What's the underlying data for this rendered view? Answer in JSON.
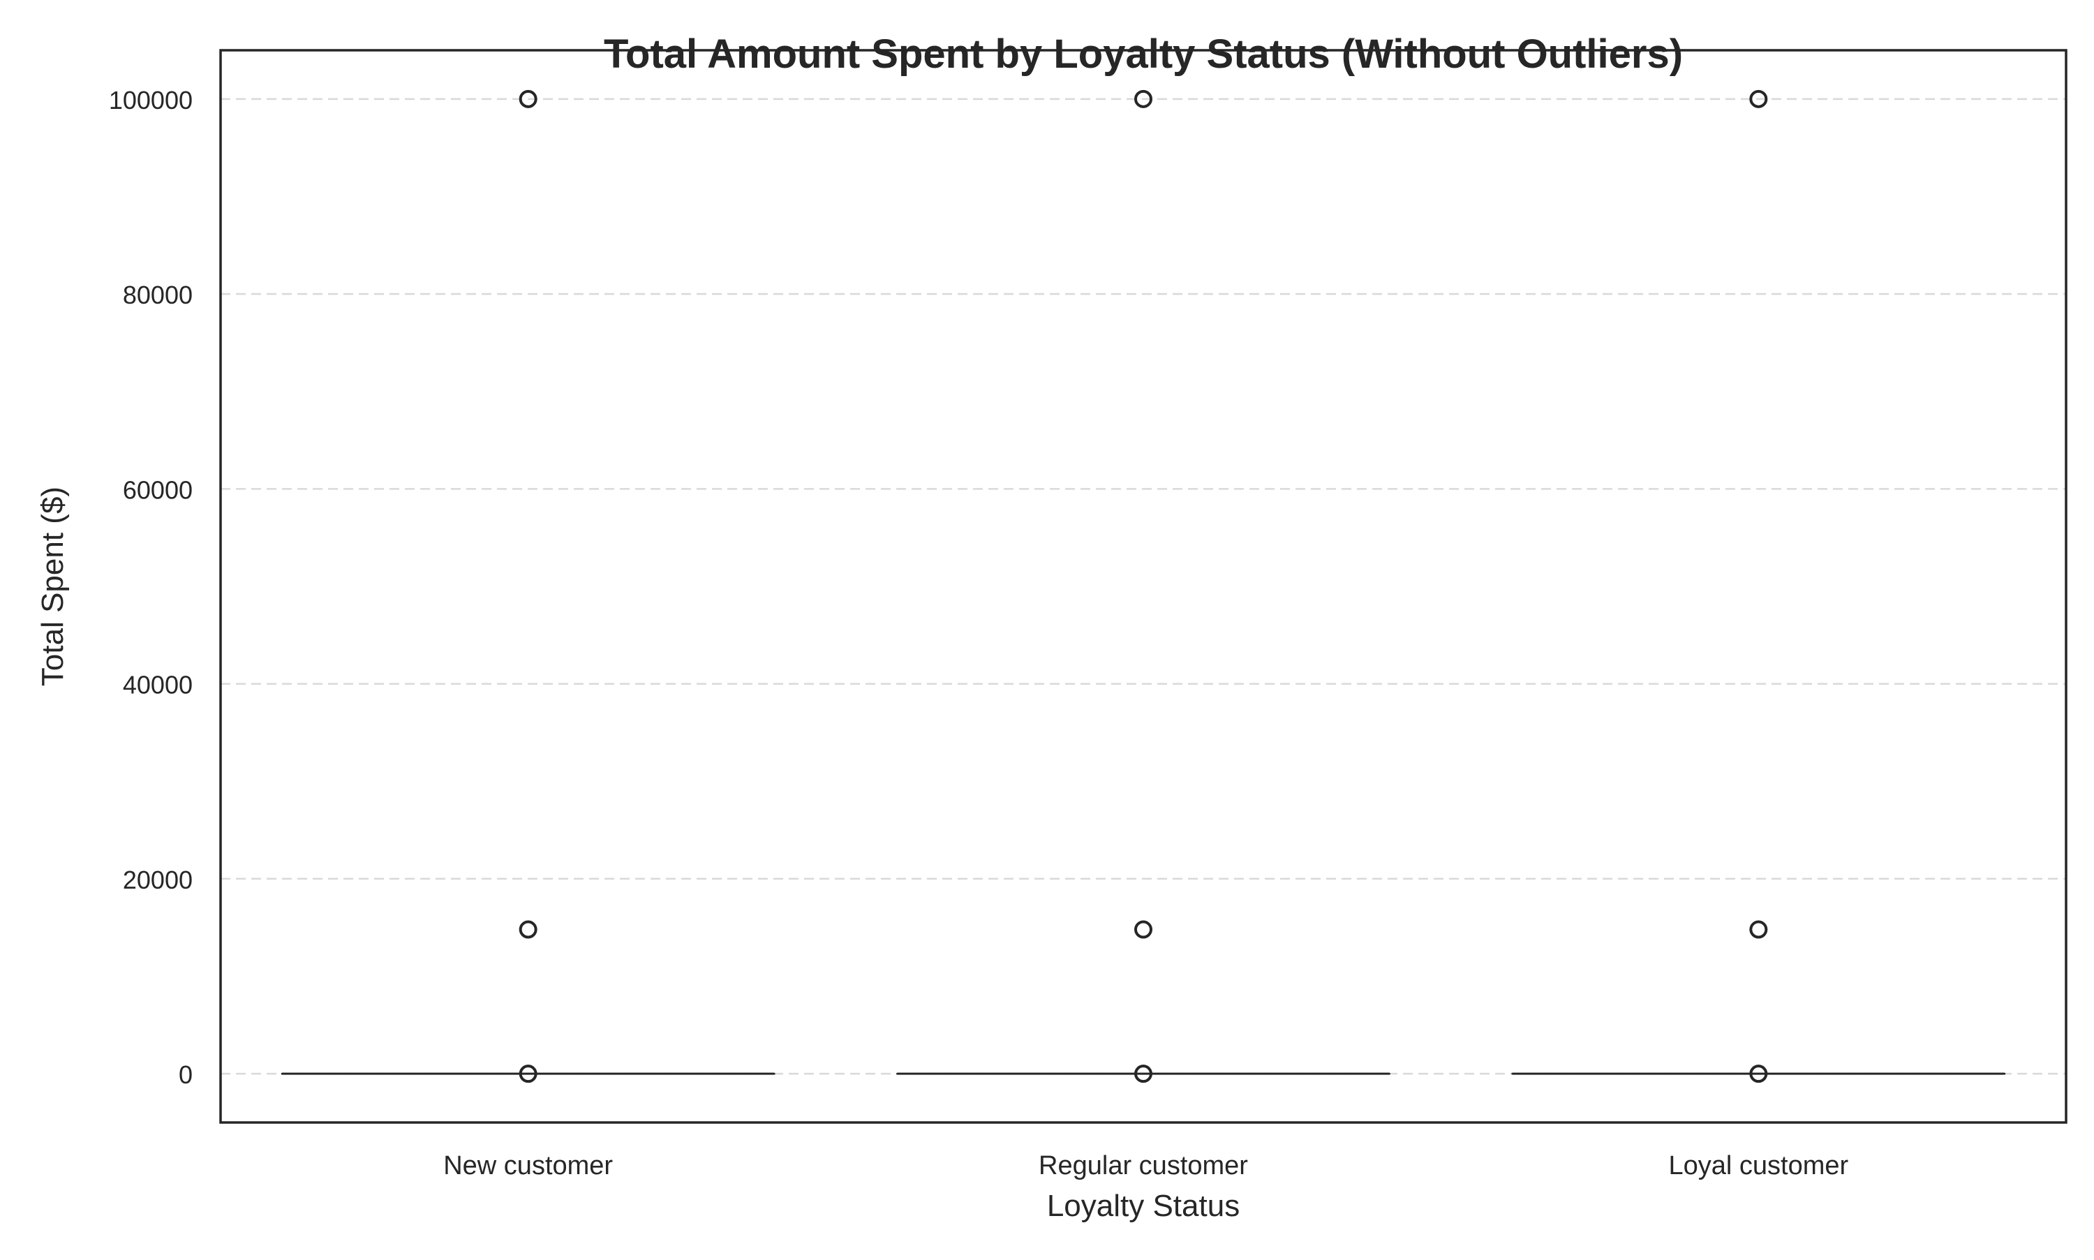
{
  "chart_data": {
    "type": "box",
    "title": "Total Amount Spent by Loyalty Status (Without Outliers)",
    "xlabel": "Loyalty Status",
    "ylabel": "Total Spent ($)",
    "categories": [
      "New customer",
      "Regular customer",
      "Loyal customer"
    ],
    "ylim": [
      -5000,
      105000
    ],
    "yticks": [
      0,
      20000,
      40000,
      60000,
      80000,
      100000
    ],
    "ytick_labels": [
      "0",
      "20000",
      "40000",
      "60000",
      "80000",
      "100000"
    ],
    "grid": "horizontal dashed",
    "boxes": [
      {
        "category": "New customer",
        "q1": 0,
        "median": 0,
        "q3": 0,
        "whisker_low": 0,
        "whisker_high": 0,
        "fliers": [
          0,
          14800,
          100000
        ]
      },
      {
        "category": "Regular customer",
        "q1": 0,
        "median": 0,
        "q3": 0,
        "whisker_low": 0,
        "whisker_high": 0,
        "fliers": [
          0,
          14800,
          100000
        ]
      },
      {
        "category": "Loyal customer",
        "q1": 0,
        "median": 0,
        "q3": 0,
        "whisker_low": 0,
        "whisker_high": 0,
        "fliers": [
          0,
          14800,
          100000
        ]
      }
    ],
    "colors": {
      "axis": "#262626",
      "grid": "#d9d9d9",
      "flier_edge": "#262626",
      "box_line": "#262626"
    }
  }
}
